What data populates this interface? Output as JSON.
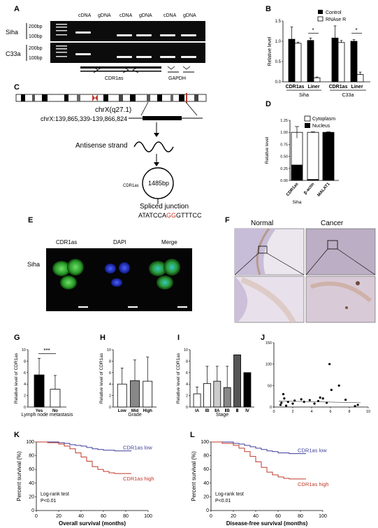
{
  "panels": {
    "A": "A",
    "B": "B",
    "C": "C",
    "D": "D",
    "E": "E",
    "F": "F",
    "G": "G",
    "H": "H",
    "I": "I",
    "J": "J",
    "K": "K",
    "L": "L"
  },
  "gel": {
    "lane_headers": [
      "cDNA",
      "gDNA",
      "cDNA",
      "gDNA",
      "cDNA",
      "gDNA"
    ],
    "rows": [
      {
        "cell": "Siha",
        "markers": [
          "200bp",
          "100bp"
        ]
      },
      {
        "cell": "C33a",
        "markers": [
          "200bp",
          "100bp"
        ]
      }
    ],
    "primer_groups": [
      "CDR1as",
      "GAPDH"
    ]
  },
  "panel_c": {
    "chromosome_label": "chrX(q27.1)",
    "coordinates": "chrX:139,865,339-139,866,824",
    "antisense": "Antisense strand",
    "circle_name": "CDR1as",
    "circle_size": "1485bp",
    "junction_label": "Spliced junction",
    "seq_pre": "ATATCCA",
    "seq_highlight": "GG",
    "seq_post": "GTTTCC"
  },
  "panel_e": {
    "columns": [
      "CDR1as",
      "DAPI",
      "Merge"
    ],
    "row_label": "Siha"
  },
  "panel_f": {
    "columns": [
      "Normal",
      "Cancer"
    ]
  },
  "charts": {
    "B": {
      "type": "bar",
      "ylabel": "Relative level",
      "yticks": [
        "0.0",
        "0.5",
        "1.0",
        "1.5"
      ],
      "ylim": [
        0,
        1.5
      ],
      "legend": [
        "Control",
        "RNAse R"
      ],
      "categories": [
        "CDR1as",
        "Liner",
        "CDR1as",
        "Liner"
      ],
      "groups": [
        "Siha",
        "C33a"
      ],
      "series": [
        {
          "name": "Control",
          "values": [
            1.05,
            1.02,
            1.08,
            1.0
          ],
          "errors": [
            0.3,
            0.06,
            0.3,
            0.04
          ]
        },
        {
          "name": "RNAse R",
          "values": [
            0.95,
            0.1,
            0.97,
            0.18
          ],
          "errors": [
            0.03,
            0.02,
            0.05,
            0.06
          ]
        }
      ],
      "annotations": [
        "*",
        "*"
      ]
    },
    "D": {
      "type": "bar",
      "ylabel": "Relative level",
      "yticks": [
        "0.00",
        "0.25",
        "0.50",
        "0.75",
        "1.00",
        "1.25"
      ],
      "ylim": [
        0,
        1.25
      ],
      "legend": [
        "Cytoplasm",
        "Nucleus"
      ],
      "categories": [
        "CDR1as",
        "β-actin",
        "MALAT1"
      ],
      "group": "Siha",
      "series": [
        {
          "name": "Cytoplasm",
          "values": [
            0.68,
            0.98,
            0.0
          ]
        },
        {
          "name": "Nucleus",
          "values": [
            0.32,
            0.02,
            1.0
          ]
        }
      ],
      "errors": [
        0.12,
        0.01,
        0.01
      ]
    },
    "G": {
      "type": "bar",
      "ylabel": "Relative level of CDR1as",
      "yticks": [
        "0",
        "2",
        "4",
        "6",
        "8",
        "10"
      ],
      "ylim": [
        0,
        10
      ],
      "categories": [
        "Yes",
        "No"
      ],
      "xlabel": "Lymph node metastasis",
      "values": [
        5.6,
        3.1
      ],
      "errors": [
        2.9,
        2.4
      ],
      "annotation": "***"
    },
    "H": {
      "type": "bar",
      "ylabel": "Relative level of CDR1as",
      "yticks": [
        "0",
        "2",
        "4",
        "6",
        "8",
        "10"
      ],
      "ylim": [
        0,
        10
      ],
      "categories": [
        "Low",
        "Mid",
        "High"
      ],
      "xlabel": "Grade",
      "values": [
        4.0,
        4.6,
        4.5
      ],
      "errors": [
        2.8,
        3.6,
        4.2
      ]
    },
    "I": {
      "type": "bar",
      "ylabel": "Relative level of CDR1as",
      "yticks": [
        "0",
        "2",
        "4",
        "6",
        "8",
        "10"
      ],
      "ylim": [
        0,
        10
      ],
      "categories": [
        "IA",
        "IB",
        "ⅡA",
        "ⅡB",
        "Ⅲ",
        "Ⅳ"
      ],
      "xlabel": "Stage",
      "values": [
        2.3,
        4.1,
        4.5,
        3.4,
        9.1,
        6.0
      ],
      "errors": [
        1.2,
        3.0,
        2.6,
        3.7,
        0,
        0
      ]
    },
    "J": {
      "type": "scatter",
      "yticks": [
        "0",
        "50",
        "100",
        "150"
      ],
      "xticks": [
        "0",
        "2",
        "4",
        "6",
        "8",
        "10"
      ],
      "xlim": [
        0,
        10
      ],
      "ylim": [
        0,
        150
      ],
      "points": [
        [
          0.7,
          5
        ],
        [
          0.8,
          10
        ],
        [
          1.0,
          30
        ],
        [
          1.1,
          20
        ],
        [
          1.3,
          3
        ],
        [
          1.5,
          12
        ],
        [
          2.0,
          8
        ],
        [
          2.2,
          15
        ],
        [
          2.9,
          18
        ],
        [
          3.2,
          12
        ],
        [
          3.8,
          16
        ],
        [
          4.3,
          8
        ],
        [
          4.7,
          14
        ],
        [
          4.9,
          22
        ],
        [
          5.2,
          20
        ],
        [
          5.6,
          10
        ],
        [
          5.9,
          100
        ],
        [
          6.1,
          40
        ],
        [
          6.9,
          50
        ],
        [
          7.6,
          17
        ],
        [
          8.6,
          2
        ],
        [
          8.9,
          5
        ]
      ]
    },
    "K": {
      "type": "line",
      "ylabel": "Percent survival (%)",
      "xlabel": "Overall survival (months)",
      "xticks": [
        "0",
        "20",
        "40",
        "60",
        "80",
        "100"
      ],
      "yticks": [
        "0",
        "20",
        "40",
        "60",
        "80",
        "100"
      ],
      "xlim": [
        0,
        100
      ],
      "ylim": [
        0,
        100
      ],
      "series": [
        {
          "name": "CDR1as low",
          "color": "#3b3b9a",
          "x": [
            0,
            10,
            20,
            25,
            30,
            35,
            40,
            45,
            50,
            55,
            60,
            70,
            85
          ],
          "y": [
            100,
            100,
            99,
            98,
            96,
            95,
            94,
            92,
            90,
            89,
            88,
            87,
            87
          ]
        },
        {
          "name": "CDR1as high",
          "color": "#c0392b",
          "x": [
            0,
            10,
            20,
            25,
            30,
            35,
            40,
            45,
            50,
            55,
            60,
            65,
            70,
            85
          ],
          "y": [
            100,
            99,
            97,
            94,
            90,
            84,
            78,
            72,
            64,
            60,
            57,
            55,
            54,
            54
          ]
        }
      ],
      "annotation": [
        "Log-rank test",
        "P<0.01"
      ]
    },
    "L": {
      "type": "line",
      "ylabel": "Percent survival (%)",
      "xlabel": "Disease-free survival (months)",
      "xticks": [
        "0",
        "20",
        "40",
        "60",
        "80",
        "100"
      ],
      "yticks": [
        "0",
        "20",
        "40",
        "60",
        "80",
        "100"
      ],
      "xlim": [
        0,
        100
      ],
      "ylim": [
        0,
        100
      ],
      "series": [
        {
          "name": "CDR1as low",
          "color": "#3b3b9a",
          "x": [
            0,
            10,
            20,
            25,
            30,
            35,
            40,
            45,
            50,
            55,
            60,
            70,
            85
          ],
          "y": [
            100,
            100,
            98,
            97,
            95,
            93,
            91,
            89,
            87,
            86,
            84,
            83,
            83
          ]
        },
        {
          "name": "CDR1as high",
          "color": "#c0392b",
          "x": [
            0,
            10,
            20,
            25,
            30,
            35,
            40,
            45,
            50,
            55,
            60,
            65,
            70,
            85
          ],
          "y": [
            100,
            98,
            95,
            91,
            86,
            79,
            71,
            63,
            56,
            52,
            49,
            47,
            46,
            46
          ]
        }
      ],
      "annotation": [
        "Log-rank test",
        "P<0.01"
      ]
    }
  }
}
